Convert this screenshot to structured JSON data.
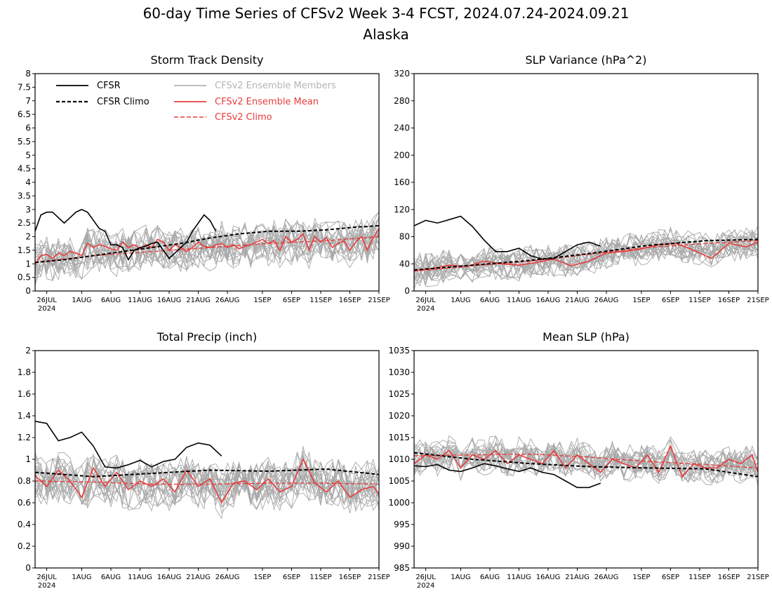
{
  "page": {
    "title_line1": "60-day Time Series of CFSv2 Week 3-4 FCST, 2024.07.24-2024.09.21",
    "title_line2": "Alaska"
  },
  "colors": {
    "cfsr": "#000000",
    "cfsr_climo": "#000000",
    "members": "#a8a8a8",
    "ens_mean": "#e83c3c",
    "cfsv2_climo": "#e83c3c",
    "legend_members_text": "#b4b4b4"
  },
  "legend": {
    "cfsr": "CFSR",
    "cfsr_climo": "CFSR Climo",
    "members": "CFSv2 Ensemble Members",
    "ens_mean": "CFSv2 Ensemble Mean",
    "cfsv2_climo": "CFSv2 Climo"
  },
  "chart_data": [
    {
      "type": "line",
      "title": "Storm Track Density",
      "xlim": [
        "2024-07-24",
        "2024-09-21"
      ],
      "ylim": [
        0,
        8
      ],
      "yticks": [
        "0",
        "0.5",
        "1",
        "1.5",
        "2",
        "2.5",
        "3",
        "3.5",
        "4",
        "4.5",
        "5",
        "5.5",
        "6",
        "6.5",
        "7",
        "7.5",
        "8"
      ],
      "xticks": [
        "26JUL",
        "1AUG",
        "6AUG",
        "11AUG",
        "16AUG",
        "21AUG",
        "26AUG",
        "1SEP",
        "6SEP",
        "11SEP",
        "16SEP",
        "21SEP"
      ],
      "xtick_year": "2024",
      "series": [
        {
          "name": "CFSR",
          "style": "solid-black",
          "x": [
            "07-24",
            "07-25",
            "07-26",
            "07-27",
            "07-28",
            "07-29",
            "07-30",
            "07-31",
            "08-01",
            "08-02",
            "08-03",
            "08-04",
            "08-05",
            "08-06",
            "08-07",
            "08-08",
            "08-09",
            "08-10",
            "08-11",
            "08-12",
            "08-13",
            "08-14",
            "08-15",
            "08-16",
            "08-17",
            "08-18",
            "08-19",
            "08-20",
            "08-21",
            "08-22",
            "08-23",
            "08-24"
          ],
          "y": [
            2.2,
            2.8,
            2.9,
            2.9,
            2.7,
            2.5,
            2.7,
            2.9,
            3.0,
            2.9,
            2.6,
            2.3,
            2.2,
            1.7,
            1.7,
            1.6,
            1.15,
            1.5,
            1.6,
            1.65,
            1.75,
            1.8,
            1.5,
            1.2,
            1.4,
            1.6,
            1.8,
            2.2,
            2.5,
            2.8,
            2.6,
            2.2
          ]
        },
        {
          "name": "CFSR Climo",
          "style": "dashed-black",
          "x": [
            "07-24",
            "07-29",
            "08-03",
            "08-08",
            "08-13",
            "08-18",
            "08-23",
            "08-28",
            "09-02",
            "09-07",
            "09-12",
            "09-17",
            "09-21"
          ],
          "y": [
            1.05,
            1.15,
            1.3,
            1.45,
            1.6,
            1.75,
            1.95,
            2.1,
            2.2,
            2.2,
            2.25,
            2.35,
            2.4
          ]
        },
        {
          "name": "CFSv2 Climo",
          "style": "dashed-red",
          "x": [
            "07-24",
            "08-03",
            "08-13",
            "08-23",
            "09-02",
            "09-12",
            "09-21"
          ],
          "y": [
            1.05,
            1.3,
            1.45,
            1.6,
            1.75,
            1.85,
            2.0
          ]
        },
        {
          "name": "CFSv2 Ensemble Mean",
          "style": "solid-red",
          "x": [
            "07-24",
            "07-25",
            "07-26",
            "07-27",
            "07-28",
            "07-29",
            "07-30",
            "07-31",
            "08-01",
            "08-02",
            "08-03",
            "08-04",
            "08-05",
            "08-06",
            "08-07",
            "08-08",
            "08-09",
            "08-10",
            "08-11",
            "08-12",
            "08-13",
            "08-14",
            "08-15",
            "08-16",
            "08-17",
            "08-18",
            "08-19",
            "08-20",
            "08-21",
            "08-22",
            "08-23",
            "08-24",
            "08-25",
            "08-26",
            "08-27",
            "08-28",
            "08-29",
            "08-30",
            "08-31",
            "09-01",
            "09-02",
            "09-03",
            "09-04",
            "09-05",
            "09-06",
            "09-07",
            "09-08",
            "09-09",
            "09-10",
            "09-11",
            "09-12",
            "09-13",
            "09-14",
            "09-15",
            "09-16",
            "09-17",
            "09-18",
            "09-19",
            "09-20",
            "09-21"
          ],
          "y": [
            1.0,
            1.3,
            1.35,
            1.2,
            1.4,
            1.3,
            1.45,
            1.4,
            1.3,
            1.75,
            1.6,
            1.7,
            1.65,
            1.55,
            1.5,
            1.8,
            1.6,
            1.7,
            1.55,
            1.7,
            1.6,
            1.9,
            1.8,
            1.5,
            1.7,
            1.6,
            1.45,
            1.6,
            1.8,
            1.65,
            1.6,
            1.7,
            1.75,
            1.6,
            1.7,
            1.55,
            1.65,
            1.7,
            1.8,
            1.9,
            1.75,
            1.85,
            1.5,
            2.0,
            1.8,
            1.9,
            2.1,
            1.5,
            2.0,
            1.8,
            1.95,
            1.6,
            1.75,
            1.85,
            1.5,
            1.8,
            2.0,
            1.5,
            1.95,
            2.3
          ]
        }
      ]
    },
    {
      "type": "line",
      "title": "SLP Variance (hPa^2)",
      "xlim": [
        "2024-07-24",
        "2024-09-21"
      ],
      "ylim": [
        0,
        320
      ],
      "yticks": [
        "0",
        "40",
        "80",
        "120",
        "160",
        "200",
        "240",
        "280",
        "320"
      ],
      "xticks": [
        "26JUL",
        "1AUG",
        "6AUG",
        "11AUG",
        "16AUG",
        "21AUG",
        "26AUG",
        "1SEP",
        "6SEP",
        "11SEP",
        "16SEP",
        "21SEP"
      ],
      "xtick_year": "2024",
      "series": [
        {
          "name": "CFSR",
          "style": "solid-black",
          "x": [
            "07-24",
            "07-26",
            "07-28",
            "07-30",
            "08-01",
            "08-03",
            "08-05",
            "08-07",
            "08-09",
            "08-11",
            "08-13",
            "08-15",
            "08-17",
            "08-19",
            "08-21",
            "08-23",
            "08-25"
          ],
          "y": [
            96,
            104,
            100,
            105,
            110,
            95,
            75,
            58,
            58,
            63,
            52,
            47,
            48,
            58,
            68,
            72,
            66
          ]
        },
        {
          "name": "CFSR Climo",
          "style": "dashed-black",
          "x": [
            "07-24",
            "08-03",
            "08-13",
            "08-23",
            "09-02",
            "09-12",
            "09-21"
          ],
          "y": [
            31,
            38,
            45,
            55,
            67,
            74,
            76
          ]
        },
        {
          "name": "CFSv2 Climo",
          "style": "dashed-red",
          "x": [
            "07-24",
            "08-03",
            "08-13",
            "08-23",
            "09-02",
            "09-12",
            "09-21"
          ],
          "y": [
            29,
            37,
            44,
            54,
            64,
            70,
            74
          ]
        },
        {
          "name": "CFSv2 Ensemble Mean",
          "style": "solid-red",
          "x": [
            "07-24",
            "07-27",
            "07-30",
            "08-02",
            "08-05",
            "08-08",
            "08-11",
            "08-14",
            "08-17",
            "08-20",
            "08-23",
            "08-26",
            "08-29",
            "09-01",
            "09-04",
            "09-07",
            "09-10",
            "09-13",
            "09-16",
            "09-19",
            "09-21"
          ],
          "y": [
            30,
            33,
            38,
            36,
            44,
            40,
            38,
            42,
            47,
            37,
            44,
            56,
            58,
            62,
            68,
            70,
            60,
            48,
            70,
            65,
            72
          ]
        }
      ]
    },
    {
      "type": "line",
      "title": "Total Precip (inch)",
      "xlim": [
        "2024-07-24",
        "2024-09-21"
      ],
      "ylim": [
        0,
        2
      ],
      "yticks": [
        "0",
        "0.2",
        "0.4",
        "0.6",
        "0.8",
        "1",
        "1.2",
        "1.4",
        "1.6",
        "1.8",
        "2"
      ],
      "xticks": [
        "26JUL",
        "1AUG",
        "6AUG",
        "11AUG",
        "16AUG",
        "21AUG",
        "26AUG",
        "1SEP",
        "6SEP",
        "11SEP",
        "16SEP",
        "21SEP"
      ],
      "xtick_year": "2024",
      "series": [
        {
          "name": "CFSR",
          "style": "solid-black",
          "x": [
            "07-24",
            "07-26",
            "07-28",
            "07-30",
            "08-01",
            "08-03",
            "08-05",
            "08-07",
            "08-09",
            "08-11",
            "08-13",
            "08-15",
            "08-17",
            "08-19",
            "08-21",
            "08-23",
            "08-25"
          ],
          "y": [
            1.35,
            1.33,
            1.17,
            1.2,
            1.25,
            1.12,
            0.93,
            0.92,
            0.95,
            0.99,
            0.93,
            0.98,
            1.0,
            1.11,
            1.15,
            1.13,
            1.03
          ]
        },
        {
          "name": "CFSR Climo",
          "style": "dashed-black",
          "x": [
            "07-24",
            "08-03",
            "08-13",
            "08-23",
            "09-02",
            "09-12",
            "09-21"
          ],
          "y": [
            0.88,
            0.84,
            0.87,
            0.9,
            0.89,
            0.91,
            0.86
          ]
        },
        {
          "name": "CFSv2 Climo",
          "style": "dashed-red",
          "x": [
            "07-24",
            "08-03",
            "08-13",
            "08-23",
            "09-02",
            "09-12",
            "09-21"
          ],
          "y": [
            0.8,
            0.79,
            0.77,
            0.77,
            0.78,
            0.78,
            0.77
          ]
        },
        {
          "name": "CFSv2 Ensemble Mean",
          "style": "solid-red",
          "x": [
            "07-24",
            "07-26",
            "07-28",
            "07-30",
            "08-01",
            "08-03",
            "08-05",
            "08-07",
            "08-09",
            "08-11",
            "08-13",
            "08-15",
            "08-17",
            "08-19",
            "08-21",
            "08-23",
            "08-25",
            "08-27",
            "08-29",
            "08-31",
            "09-02",
            "09-04",
            "09-06",
            "09-08",
            "09-10",
            "09-12",
            "09-14",
            "09-16",
            "09-18",
            "09-20",
            "09-21"
          ],
          "y": [
            0.85,
            0.75,
            0.9,
            0.8,
            0.65,
            0.92,
            0.75,
            0.88,
            0.72,
            0.8,
            0.75,
            0.82,
            0.7,
            0.9,
            0.75,
            0.82,
            0.6,
            0.78,
            0.8,
            0.72,
            0.82,
            0.7,
            0.75,
            1.0,
            0.78,
            0.7,
            0.8,
            0.65,
            0.72,
            0.75,
            0.68
          ]
        }
      ]
    },
    {
      "type": "line",
      "title": "Mean SLP (hPa)",
      "xlim": [
        "2024-07-24",
        "2024-09-21"
      ],
      "ylim": [
        985,
        1035
      ],
      "yticks": [
        "985",
        "990",
        "995",
        "1000",
        "1005",
        "1010",
        "1015",
        "1020",
        "1025",
        "1030",
        "1035"
      ],
      "xticks": [
        "26JUL",
        "1AUG",
        "6AUG",
        "11AUG",
        "16AUG",
        "21AUG",
        "26AUG",
        "1SEP",
        "6SEP",
        "11SEP",
        "16SEP",
        "21SEP"
      ],
      "xtick_year": "2024",
      "series": [
        {
          "name": "CFSR",
          "style": "solid-black",
          "x": [
            "07-24",
            "07-26",
            "07-28",
            "07-30",
            "08-01",
            "08-03",
            "08-05",
            "08-07",
            "08-09",
            "08-11",
            "08-13",
            "08-15",
            "08-17",
            "08-19",
            "08-21",
            "08-23",
            "08-25"
          ],
          "y": [
            1008.5,
            1008.3,
            1008.8,
            1007.5,
            1007.2,
            1008,
            1009,
            1008.5,
            1007.8,
            1007.2,
            1008,
            1007,
            1006.5,
            1005,
            1003.5,
            1003.5,
            1004.5
          ]
        },
        {
          "name": "CFSR Climo",
          "style": "dashed-black",
          "x": [
            "07-24",
            "08-03",
            "08-13",
            "08-23",
            "09-02",
            "09-12",
            "09-21"
          ],
          "y": [
            1011.5,
            1010,
            1009,
            1008.3,
            1008,
            1007.8,
            1006
          ]
        },
        {
          "name": "CFSv2 Climo",
          "style": "dashed-red",
          "x": [
            "07-24",
            "08-03",
            "08-13",
            "08-23",
            "09-02",
            "09-12",
            "09-21"
          ],
          "y": [
            1010.8,
            1011,
            1011.2,
            1010.5,
            1009.5,
            1008.8,
            1008
          ]
        },
        {
          "name": "CFSv2 Ensemble Mean",
          "style": "solid-red",
          "x": [
            "07-24",
            "07-26",
            "07-28",
            "07-30",
            "08-01",
            "08-03",
            "08-05",
            "08-07",
            "08-09",
            "08-11",
            "08-13",
            "08-15",
            "08-17",
            "08-19",
            "08-21",
            "08-23",
            "08-25",
            "08-27",
            "08-29",
            "08-31",
            "09-02",
            "09-04",
            "09-06",
            "09-08",
            "09-10",
            "09-12",
            "09-14",
            "09-16",
            "09-18",
            "09-20",
            "09-21"
          ],
          "y": [
            1009,
            1011,
            1010,
            1012,
            1008,
            1011,
            1010,
            1012,
            1009,
            1011,
            1010,
            1009,
            1012,
            1008,
            1011,
            1009,
            1007,
            1010,
            1009,
            1008,
            1011,
            1007,
            1013,
            1006,
            1009,
            1008,
            1008,
            1010,
            1009,
            1011,
            1007
          ]
        }
      ]
    }
  ]
}
